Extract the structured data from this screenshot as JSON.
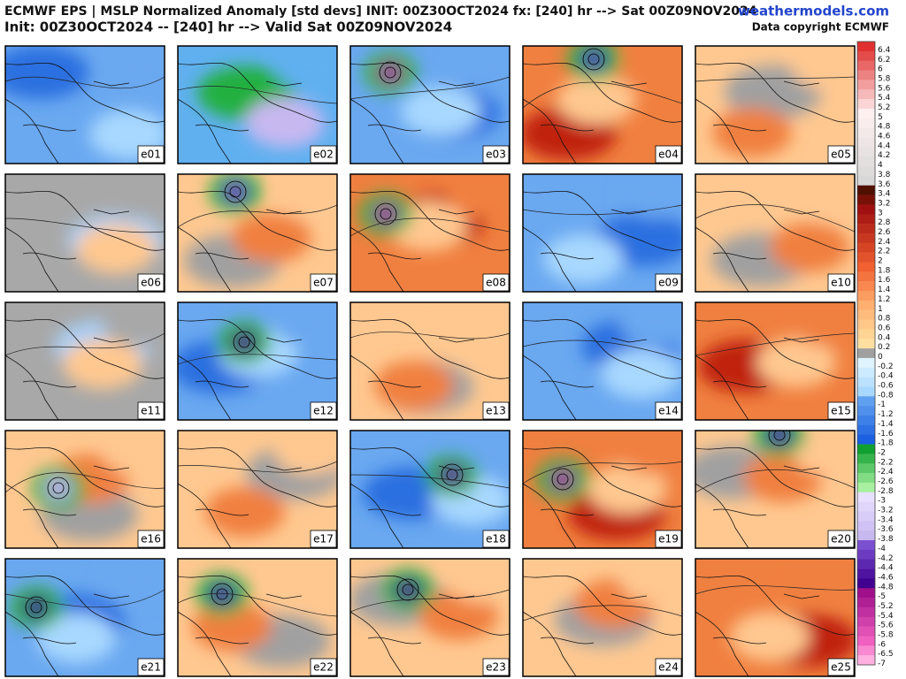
{
  "header": {
    "title": "ECMWF EPS | MSLP Normalized Anomaly [std devs] INIT: 00Z30OCT2024 fx: [240] hr --> Sat 00Z09NOV2024",
    "site": "weathermodels.com",
    "subtitle": "Init: 00Z30OCT2024 -- [240] hr --> Valid Sat 00Z09NOV2024",
    "copyright": "Data copyright ECMWF"
  },
  "panels": [
    "e01",
    "e02",
    "e03",
    "e04",
    "e05",
    "e06",
    "e07",
    "e08",
    "e09",
    "e10",
    "e11",
    "e12",
    "e13",
    "e14",
    "e15",
    "e16",
    "e17",
    "e18",
    "e19",
    "e20",
    "e21",
    "e22",
    "e23",
    "e24",
    "e25"
  ],
  "colorbar": {
    "ticks": [
      6.4,
      6.2,
      6,
      5.8,
      5.6,
      5.4,
      5.2,
      5,
      4.8,
      4.6,
      4.4,
      4.2,
      4,
      3.8,
      3.6,
      3.4,
      3.2,
      3,
      2.8,
      2.6,
      2.4,
      2.2,
      2,
      1.8,
      1.6,
      1.4,
      1.2,
      1,
      0.8,
      0.6,
      0.4,
      0.2,
      0,
      -0.2,
      -0.4,
      -0.6,
      -0.8,
      -1,
      -1.2,
      -1.4,
      -1.6,
      -1.8,
      -2,
      -2.2,
      -2.4,
      -2.6,
      -2.8,
      -3,
      -3.2,
      -3.4,
      -3.6,
      -3.8,
      -4,
      -4.2,
      -4.4,
      -4.6,
      -4.8,
      -5,
      -5.2,
      -5.4,
      -5.6,
      -5.8,
      -6,
      -6.5,
      -7
    ]
  }
}
